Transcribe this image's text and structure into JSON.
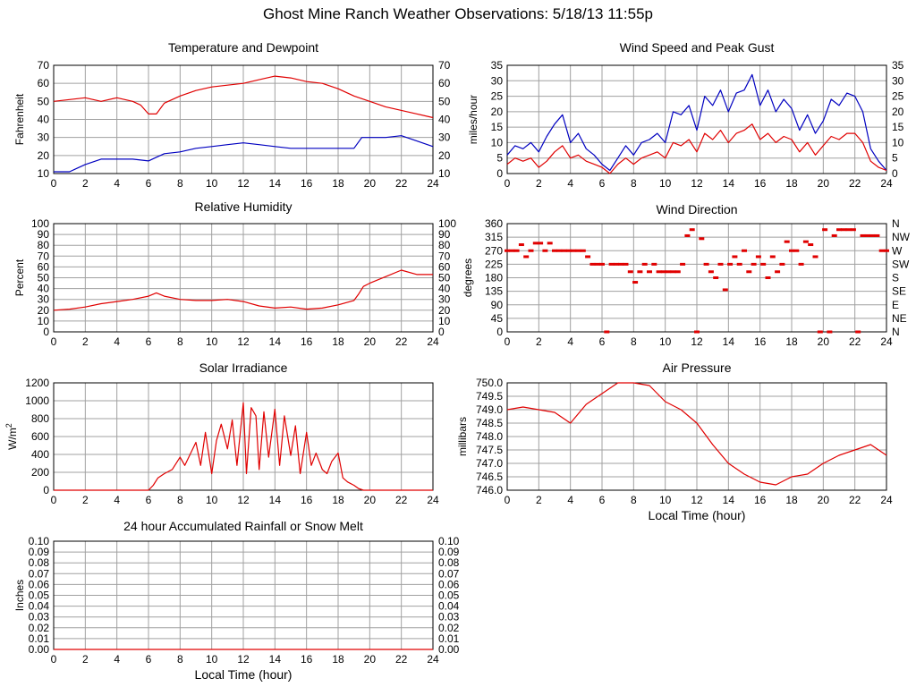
{
  "page": {
    "title": "Ghost Mine Ranch Weather Observations: 5/18/13 11:55p"
  },
  "colors": {
    "red": "#e00000",
    "blue": "#0000c0",
    "grid": "#a0a0a0",
    "axis": "#000000"
  },
  "chart_data": [
    {
      "id": "temp",
      "type": "line",
      "title": "Temperature and Dewpoint",
      "ylabel": "Fahrenheit",
      "xlabel": "",
      "xlim": [
        0,
        24
      ],
      "ylim": [
        10,
        70
      ],
      "yticks": [
        "10",
        "20",
        "30",
        "40",
        "50",
        "60",
        "70"
      ],
      "right_yticks": [
        "10",
        "20",
        "30",
        "40",
        "50",
        "60",
        "70"
      ],
      "xticks": [
        "0",
        "2",
        "4",
        "6",
        "8",
        "10",
        "12",
        "14",
        "16",
        "18",
        "20",
        "22",
        "24"
      ],
      "grid": true,
      "series": [
        {
          "color": "red",
          "x": [
            0,
            1,
            2,
            3,
            4,
            5,
            5.5,
            6,
            6.5,
            7,
            8,
            9,
            10,
            11,
            12,
            13,
            14,
            15,
            16,
            17,
            18,
            19,
            20,
            21,
            22,
            23,
            24
          ],
          "y": [
            50,
            51,
            52,
            50,
            52,
            50,
            48,
            43,
            43,
            49,
            53,
            56,
            58,
            59,
            60,
            62,
            64,
            63,
            61,
            60,
            57,
            53,
            50,
            47,
            45,
            43,
            41
          ]
        },
        {
          "color": "blue",
          "x": [
            0,
            1,
            1.5,
            2,
            3,
            4,
            5,
            6,
            6.5,
            7,
            8,
            9,
            10,
            11,
            12,
            13,
            14,
            15,
            16,
            17,
            18,
            19,
            19.5,
            20,
            21,
            22,
            23,
            24
          ],
          "y": [
            11,
            11,
            13,
            15,
            18,
            18,
            18,
            17,
            19,
            21,
            22,
            24,
            25,
            26,
            27,
            26,
            25,
            24,
            24,
            24,
            24,
            24,
            30,
            30,
            30,
            31,
            28,
            25
          ]
        }
      ]
    },
    {
      "id": "wind",
      "type": "line",
      "title": "Wind Speed and Peak Gust",
      "ylabel": "miles/hour",
      "xlabel": "",
      "xlim": [
        0,
        24
      ],
      "ylim": [
        0,
        35
      ],
      "yticks": [
        "0",
        "5",
        "10",
        "15",
        "20",
        "25",
        "30",
        "35"
      ],
      "right_yticks": [
        "0",
        "5",
        "10",
        "15",
        "20",
        "25",
        "30",
        "35"
      ],
      "xticks": [
        "0",
        "2",
        "4",
        "6",
        "8",
        "10",
        "12",
        "14",
        "16",
        "18",
        "20",
        "22",
        "24"
      ],
      "grid": true,
      "series": [
        {
          "color": "blue",
          "x": [
            0,
            0.5,
            1,
            1.5,
            2,
            2.5,
            3,
            3.5,
            4,
            4.5,
            5,
            5.5,
            6,
            6.5,
            7,
            7.5,
            8,
            8.5,
            9,
            9.5,
            10,
            10.5,
            11,
            11.5,
            12,
            12.5,
            13,
            13.5,
            14,
            14.5,
            15,
            15.5,
            16,
            16.5,
            17,
            17.5,
            18,
            18.5,
            19,
            19.5,
            20,
            20.5,
            21,
            21.5,
            22,
            22.5,
            23,
            23.5,
            24
          ],
          "y": [
            6,
            9,
            8,
            10,
            7,
            12,
            16,
            19,
            10,
            13,
            8,
            6,
            3,
            1,
            5,
            9,
            6,
            10,
            11,
            13,
            10,
            20,
            19,
            22,
            14,
            25,
            22,
            27,
            20,
            26,
            27,
            32,
            22,
            27,
            20,
            24,
            21,
            14,
            19,
            13,
            17,
            24,
            22,
            26,
            25,
            20,
            8,
            4,
            1
          ]
        },
        {
          "color": "red",
          "x": [
            0,
            0.5,
            1,
            1.5,
            2,
            2.5,
            3,
            3.5,
            4,
            4.5,
            5,
            5.5,
            6,
            6.5,
            7,
            7.5,
            8,
            8.5,
            9,
            9.5,
            10,
            10.5,
            11,
            11.5,
            12,
            12.5,
            13,
            13.5,
            14,
            14.5,
            15,
            15.5,
            16,
            16.5,
            17,
            17.5,
            18,
            18.5,
            19,
            19.5,
            20,
            20.5,
            21,
            21.5,
            22,
            22.5,
            23,
            23.5,
            24
          ],
          "y": [
            3,
            5,
            4,
            5,
            2,
            4,
            7,
            9,
            5,
            6,
            4,
            3,
            2,
            0,
            3,
            5,
            3,
            5,
            6,
            7,
            5,
            10,
            9,
            11,
            7,
            13,
            11,
            14,
            10,
            13,
            14,
            16,
            11,
            13,
            10,
            12,
            11,
            7,
            10,
            6,
            9,
            12,
            11,
            13,
            13,
            10,
            4,
            2,
            1
          ]
        }
      ]
    },
    {
      "id": "rh",
      "type": "line",
      "title": "Relative Humidity",
      "ylabel": "Percent",
      "xlabel": "",
      "xlim": [
        0,
        24
      ],
      "ylim": [
        0,
        100
      ],
      "yticks": [
        "0",
        "10",
        "20",
        "30",
        "40",
        "50",
        "60",
        "70",
        "80",
        "90",
        "100"
      ],
      "right_yticks": [
        "0",
        "10",
        "20",
        "30",
        "40",
        "50",
        "60",
        "70",
        "80",
        "90",
        "100"
      ],
      "xticks": [
        "0",
        "2",
        "4",
        "6",
        "8",
        "10",
        "12",
        "14",
        "16",
        "18",
        "20",
        "22",
        "24"
      ],
      "grid": true,
      "series": [
        {
          "color": "red",
          "x": [
            0,
            1,
            2,
            3,
            4,
            5,
            6,
            6.5,
            7,
            8,
            9,
            10,
            11,
            12,
            13,
            14,
            15,
            16,
            17,
            18,
            19,
            19.3,
            19.6,
            20,
            21,
            22,
            23,
            24
          ],
          "y": [
            20,
            21,
            23,
            26,
            28,
            30,
            33,
            36,
            33,
            30,
            29,
            29,
            30,
            28,
            24,
            22,
            23,
            21,
            22,
            25,
            29,
            35,
            42,
            45,
            51,
            57,
            53,
            53
          ]
        }
      ]
    },
    {
      "id": "wdir",
      "type": "scatter",
      "title": "Wind Direction",
      "ylabel": "degrees",
      "xlabel": "",
      "xlim": [
        0,
        24
      ],
      "ylim": [
        0,
        360
      ],
      "yticks": [
        "0",
        "45",
        "90",
        "135",
        "180",
        "225",
        "270",
        "315",
        "360"
      ],
      "right_yticks": [
        "N",
        "NE",
        "E",
        "SE",
        "S",
        "SW",
        "W",
        "NW",
        "N"
      ],
      "xticks": [
        "0",
        "2",
        "4",
        "6",
        "8",
        "10",
        "12",
        "14",
        "16",
        "18",
        "20",
        "22",
        "24"
      ],
      "grid": true,
      "series": [
        {
          "color": "red",
          "x": [
            0,
            0.3,
            0.6,
            0.9,
            1.2,
            1.5,
            1.8,
            2.1,
            2.4,
            2.7,
            3,
            3.3,
            3.6,
            3.9,
            4.2,
            4.5,
            4.8,
            5.1,
            5.4,
            5.7,
            6,
            6.3,
            6.6,
            6.9,
            7.2,
            7.5,
            7.8,
            8.1,
            8.4,
            8.7,
            9,
            9.3,
            9.6,
            9.9,
            10.2,
            10.5,
            10.8,
            11.1,
            11.4,
            11.7,
            12,
            12.3,
            12.6,
            12.9,
            13.2,
            13.5,
            13.8,
            14.1,
            14.4,
            14.7,
            15,
            15.3,
            15.6,
            15.9,
            16.2,
            16.5,
            16.8,
            17.1,
            17.4,
            17.7,
            18,
            18.3,
            18.6,
            18.9,
            19.2,
            19.5,
            19.8,
            20.1,
            20.4,
            20.7,
            21,
            21.3,
            21.6,
            21.9,
            22.2,
            22.5,
            22.8,
            23.1,
            23.4,
            23.7,
            24
          ],
          "y": [
            270,
            270,
            270,
            290,
            250,
            270,
            295,
            295,
            270,
            295,
            270,
            270,
            270,
            270,
            270,
            270,
            270,
            250,
            225,
            225,
            225,
            0,
            225,
            225,
            225,
            225,
            200,
            165,
            200,
            225,
            200,
            225,
            200,
            200,
            200,
            200,
            200,
            225,
            320,
            340,
            0,
            310,
            225,
            200,
            180,
            225,
            140,
            225,
            250,
            225,
            270,
            200,
            225,
            250,
            225,
            180,
            250,
            200,
            225,
            300,
            270,
            270,
            225,
            300,
            290,
            250,
            0,
            340,
            0,
            320,
            340,
            340,
            340,
            340,
            0,
            320,
            320,
            320,
            320,
            270,
            270
          ]
        }
      ]
    },
    {
      "id": "solar",
      "type": "line",
      "title": "Solar Irradiance",
      "ylabel": "W/m",
      "ylabel_sup": "2",
      "xlabel": "",
      "xlim": [
        0,
        24
      ],
      "ylim": [
        0,
        1300
      ],
      "yticks": [
        "0",
        "200",
        "400",
        "600",
        "800",
        "1000",
        "1200"
      ],
      "right_yticks": [],
      "xticks": [
        "0",
        "2",
        "4",
        "6",
        "8",
        "10",
        "12",
        "14",
        "16",
        "18",
        "20",
        "22",
        "24"
      ],
      "grid": true,
      "series": [
        {
          "color": "red",
          "x": [
            0,
            5.5,
            6,
            6.3,
            6.6,
            7,
            7.5,
            8,
            8.3,
            8.6,
            9,
            9.3,
            9.6,
            10,
            10.3,
            10.6,
            11,
            11.3,
            11.6,
            12,
            12.2,
            12.5,
            12.8,
            13,
            13.3,
            13.6,
            14,
            14.3,
            14.6,
            15,
            15.3,
            15.6,
            16,
            16.3,
            16.6,
            17,
            17.3,
            17.6,
            18,
            18.3,
            18.6,
            19,
            19.3,
            19.6,
            20,
            24
          ],
          "y": [
            0,
            0,
            0,
            60,
            150,
            200,
            250,
            400,
            300,
            420,
            580,
            300,
            700,
            200,
            600,
            800,
            500,
            850,
            300,
            1060,
            200,
            1000,
            900,
            250,
            950,
            400,
            980,
            300,
            900,
            420,
            780,
            200,
            700,
            300,
            450,
            250,
            200,
            350,
            450,
            150,
            100,
            60,
            20,
            0,
            0,
            0
          ]
        }
      ]
    },
    {
      "id": "press",
      "type": "line",
      "title": "Air Pressure",
      "ylabel": "millibars",
      "xlabel": "Local Time (hour)",
      "xlim": [
        0,
        24
      ],
      "ylim": [
        746.0,
        750.0
      ],
      "yticks": [
        "746.0",
        "746.5",
        "747.0",
        "747.5",
        "748.0",
        "748.5",
        "749.0",
        "749.5",
        "750.0"
      ],
      "right_yticks": [],
      "xticks": [
        "0",
        "2",
        "4",
        "6",
        "8",
        "10",
        "12",
        "14",
        "16",
        "18",
        "20",
        "22",
        "24"
      ],
      "grid": true,
      "series": [
        {
          "color": "red",
          "x": [
            0,
            1,
            2,
            3,
            4,
            5,
            6,
            7,
            8,
            9,
            10,
            11,
            12,
            13,
            14,
            15,
            16,
            17,
            18,
            19,
            20,
            21,
            22,
            23,
            24
          ],
          "y": [
            749.0,
            749.1,
            749.0,
            748.9,
            748.5,
            749.2,
            749.6,
            750.0,
            750.0,
            749.9,
            749.3,
            749.0,
            748.5,
            747.7,
            747.0,
            746.6,
            746.3,
            746.2,
            746.5,
            746.6,
            747.0,
            747.3,
            747.5,
            747.7,
            747.3
          ]
        }
      ]
    },
    {
      "id": "rain",
      "type": "line",
      "title": "24 hour Accumulated Rainfall or Snow Melt",
      "ylabel": "Inches",
      "xlabel": "Local Time (hour)",
      "xlim": [
        0,
        24
      ],
      "ylim": [
        0,
        0.1
      ],
      "yticks": [
        "0.00",
        "0.01",
        "0.02",
        "0.03",
        "0.04",
        "0.05",
        "0.06",
        "0.07",
        "0.08",
        "0.09",
        "0.10"
      ],
      "right_yticks": [
        "0.00",
        "0.01",
        "0.02",
        "0.03",
        "0.04",
        "0.05",
        "0.06",
        "0.07",
        "0.08",
        "0.09",
        "0.10"
      ],
      "xticks": [
        "0",
        "2",
        "4",
        "6",
        "8",
        "10",
        "12",
        "14",
        "16",
        "18",
        "20",
        "22",
        "24"
      ],
      "grid": true,
      "series": [
        {
          "color": "red",
          "x": [
            0,
            24
          ],
          "y": [
            0,
            0
          ]
        }
      ]
    }
  ]
}
